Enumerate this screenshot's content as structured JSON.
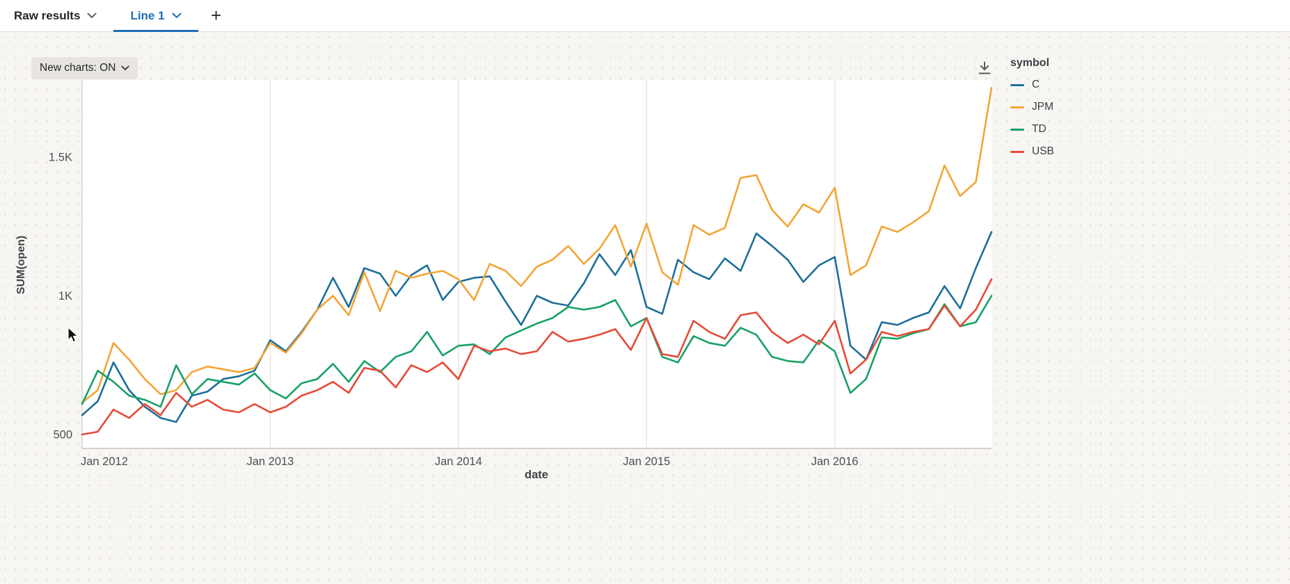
{
  "tab_bar": {
    "raw_results_label": "Raw results",
    "active_tab_label": "Line 1",
    "add_tab_label": "+"
  },
  "toolbar": {
    "new_charts_label": "New charts: ON"
  },
  "legend": {
    "title": "symbol"
  },
  "icons": {
    "chevron_down": "chevron-down-icon",
    "plus": "plus-icon",
    "download": "download-icon"
  },
  "colors": {
    "accent_blue": "#1e6db6",
    "background": "#f8f6f2",
    "plot_background": "#ffffff",
    "gridline": "#e8e5e0"
  },
  "chart_data": {
    "type": "line",
    "title": "",
    "xlabel": "date",
    "ylabel": "SUM(open)",
    "x_unit": "month",
    "x_range": [
      "Jan 2012",
      "Nov 2016"
    ],
    "x_tick_indices": [
      0,
      12,
      24,
      36,
      48
    ],
    "x_tick_labels": [
      "Jan 2012",
      "Jan 2013",
      "Jan 2014",
      "Jan 2015",
      "Jan 2016"
    ],
    "y_ticks": [
      {
        "value": 500,
        "label": "500"
      },
      {
        "value": 1000,
        "label": "1K"
      },
      {
        "value": 1500,
        "label": "1.5K"
      }
    ],
    "ylim": [
      450,
      1778
    ],
    "grid": "vertical-yearly",
    "legend_position": "right",
    "series": [
      {
        "name": "C",
        "color": "#1d6f99",
        "values": [
          570,
          620,
          760,
          660,
          600,
          560,
          545,
          640,
          655,
          700,
          710,
          730,
          840,
          800,
          870,
          950,
          1065,
          960,
          1100,
          1080,
          1000,
          1075,
          1110,
          985,
          1050,
          1065,
          1070,
          980,
          895,
          1000,
          975,
          965,
          1045,
          1150,
          1075,
          1165,
          960,
          935,
          1130,
          1085,
          1060,
          1135,
          1090,
          1225,
          1180,
          1130,
          1050,
          1110,
          1140,
          820,
          770,
          905,
          895,
          920,
          940,
          1035,
          955,
          1100,
          1230
        ]
      },
      {
        "name": "JPM",
        "color": "#f2a535",
        "values": [
          615,
          660,
          830,
          770,
          700,
          645,
          660,
          725,
          745,
          735,
          725,
          740,
          830,
          795,
          865,
          950,
          1000,
          930,
          1085,
          945,
          1090,
          1065,
          1080,
          1090,
          1060,
          985,
          1115,
          1090,
          1035,
          1105,
          1130,
          1180,
          1115,
          1170,
          1255,
          1105,
          1260,
          1085,
          1040,
          1255,
          1220,
          1245,
          1425,
          1435,
          1310,
          1250,
          1330,
          1300,
          1390,
          1075,
          1110,
          1250,
          1230,
          1265,
          1305,
          1470,
          1360,
          1410,
          1750
        ]
      },
      {
        "name": "TD",
        "color": "#17a165",
        "values": [
          610,
          730,
          690,
          640,
          625,
          600,
          750,
          645,
          700,
          690,
          680,
          720,
          660,
          630,
          685,
          700,
          755,
          690,
          765,
          725,
          780,
          800,
          870,
          785,
          820,
          825,
          790,
          850,
          875,
          900,
          920,
          960,
          950,
          960,
          985,
          890,
          920,
          780,
          760,
          855,
          830,
          820,
          885,
          860,
          780,
          765,
          760,
          840,
          800,
          650,
          700,
          850,
          845,
          865,
          880,
          970,
          890,
          905,
          1000
        ]
      },
      {
        "name": "USB",
        "color": "#e64a38",
        "values": [
          500,
          510,
          590,
          560,
          610,
          570,
          650,
          600,
          625,
          590,
          580,
          610,
          580,
          600,
          640,
          660,
          690,
          650,
          740,
          730,
          670,
          750,
          725,
          760,
          700,
          820,
          800,
          810,
          790,
          800,
          870,
          835,
          845,
          860,
          880,
          805,
          920,
          790,
          780,
          910,
          870,
          845,
          930,
          940,
          870,
          830,
          860,
          825,
          910,
          720,
          770,
          870,
          855,
          870,
          880,
          965,
          890,
          950,
          1060
        ]
      }
    ]
  }
}
